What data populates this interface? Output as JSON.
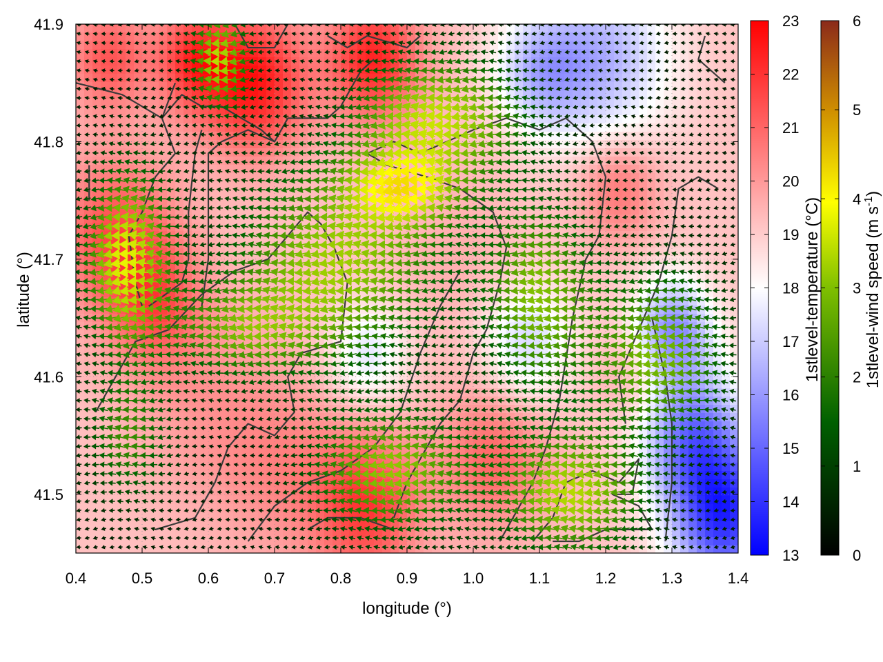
{
  "chart_data": {
    "type": "heatmap",
    "title": "",
    "xlabel": "longitude (°)",
    "ylabel": "latitude (°)",
    "xlim": [
      0.4,
      1.4
    ],
    "ylim": [
      41.45,
      41.9
    ],
    "x_ticks": [
      0.4,
      0.5,
      0.6,
      0.7,
      0.8,
      0.9,
      1.0,
      1.1,
      1.2,
      1.3,
      1.4
    ],
    "x_tick_labels": [
      "0.4",
      "0.5",
      "0.6",
      "0.7",
      "0.8",
      "0.9",
      "1.0",
      "1.1",
      "1.2",
      "1.3",
      "1.4"
    ],
    "y_ticks": [
      41.5,
      41.6,
      41.7,
      41.8,
      41.9
    ],
    "y_tick_labels": [
      "41.5",
      "41.6",
      "41.7",
      "41.8",
      "41.9"
    ],
    "grid": true,
    "temperature_colorbar": {
      "label": "1stlevel-temperature (°C)",
      "range": [
        13,
        23
      ],
      "ticks": [
        13,
        14,
        15,
        16,
        17,
        18,
        19,
        20,
        21,
        22,
        23
      ],
      "tick_labels": [
        "13",
        "14",
        "15",
        "16",
        "17",
        "18",
        "19",
        "20",
        "21",
        "22",
        "23"
      ],
      "colors": [
        "#0000ff",
        "#ffffff",
        "#ff0000"
      ]
    },
    "wind_colorbar": {
      "label_main": "1stlevel-wind speed (m s",
      "label_sup": "-1",
      "label_end": ")",
      "range": [
        0,
        6
      ],
      "ticks": [
        0,
        1,
        2,
        3,
        4,
        5,
        6
      ],
      "tick_labels": [
        "0",
        "1",
        "2",
        "3",
        "4",
        "5",
        "6"
      ],
      "colors": [
        "#000000",
        "#006400",
        "#7fbf00",
        "#ffff00",
        "#e0a000",
        "#8b2a1a"
      ]
    },
    "temperature_hotspots": [
      {
        "lon": 0.46,
        "lat": 41.72,
        "t": 21.5,
        "r": 0.09
      },
      {
        "lon": 0.52,
        "lat": 41.66,
        "t": 21.0,
        "r": 0.07
      },
      {
        "lon": 0.67,
        "lat": 41.85,
        "t": 22.5,
        "r": 0.08
      },
      {
        "lon": 0.58,
        "lat": 41.87,
        "t": 21.8,
        "r": 0.06
      },
      {
        "lon": 0.85,
        "lat": 41.87,
        "t": 22.3,
        "r": 0.07
      },
      {
        "lon": 0.45,
        "lat": 41.87,
        "t": 21.3,
        "r": 0.06
      },
      {
        "lon": 0.84,
        "lat": 41.49,
        "t": 21.8,
        "r": 0.08
      },
      {
        "lon": 1.03,
        "lat": 41.53,
        "t": 21.0,
        "r": 0.08
      },
      {
        "lon": 0.72,
        "lat": 41.52,
        "t": 20.2,
        "r": 0.1
      },
      {
        "lon": 1.22,
        "lat": 41.76,
        "t": 20.8,
        "r": 0.06
      },
      {
        "lon": 1.25,
        "lat": 41.6,
        "t": 20.0,
        "r": 0.06
      },
      {
        "lon": 0.6,
        "lat": 41.58,
        "t": 20.0,
        "r": 0.12
      },
      {
        "lon": 0.98,
        "lat": 41.7,
        "t": 19.6,
        "r": 0.1
      }
    ],
    "temperature_coldspots": [
      {
        "lon": 1.38,
        "lat": 41.48,
        "t": 14.2,
        "r": 0.08
      },
      {
        "lon": 1.33,
        "lat": 41.55,
        "t": 15.5,
        "r": 0.08
      },
      {
        "lon": 1.3,
        "lat": 41.64,
        "t": 15.8,
        "r": 0.06
      },
      {
        "lon": 1.2,
        "lat": 41.87,
        "t": 16.6,
        "r": 0.1
      },
      {
        "lon": 1.1,
        "lat": 41.86,
        "t": 16.9,
        "r": 0.07
      },
      {
        "lon": 1.08,
        "lat": 41.63,
        "t": 17.2,
        "r": 0.07
      },
      {
        "lon": 0.84,
        "lat": 41.62,
        "t": 17.5,
        "r": 0.06
      }
    ],
    "background_temperature": 19.2,
    "wind_vectors": {
      "lon_start": 0.405,
      "lon_step": 0.0125,
      "lat_start": 41.455,
      "lat_step": 0.0078,
      "direction": "mostly from the east (arrows pointing west)",
      "speed_range": [
        0,
        4.3
      ]
    },
    "coastlines": [
      [
        [
          0.4,
          41.85
        ],
        [
          0.47,
          41.84
        ],
        [
          0.53,
          41.82
        ],
        [
          0.56,
          41.84
        ],
        [
          0.59,
          41.83
        ],
        [
          0.62,
          41.83
        ],
        [
          0.68,
          41.81
        ],
        [
          0.7,
          41.8
        ],
        [
          0.72,
          41.82
        ],
        [
          0.78,
          41.82
        ],
        [
          0.8,
          41.83
        ],
        [
          0.83,
          41.86
        ],
        [
          0.85,
          41.87
        ]
      ],
      [
        [
          0.55,
          41.85
        ],
        [
          0.53,
          41.82
        ],
        [
          0.55,
          41.79
        ],
        [
          0.52,
          41.77
        ],
        [
          0.5,
          41.74
        ],
        [
          0.48,
          41.72
        ],
        [
          0.49,
          41.68
        ],
        [
          0.5,
          41.66
        ]
      ],
      [
        [
          0.59,
          41.81
        ],
        [
          0.58,
          41.79
        ],
        [
          0.57,
          41.74
        ],
        [
          0.57,
          41.7
        ],
        [
          0.56,
          41.68
        ],
        [
          0.51,
          41.66
        ]
      ],
      [
        [
          0.43,
          41.57
        ],
        [
          0.46,
          41.6
        ],
        [
          0.49,
          41.63
        ],
        [
          0.54,
          41.64
        ],
        [
          0.59,
          41.67
        ],
        [
          0.64,
          41.69
        ],
        [
          0.69,
          41.7
        ],
        [
          0.72,
          41.72
        ],
        [
          0.75,
          41.74
        ],
        [
          0.77,
          41.73
        ],
        [
          0.79,
          41.71
        ],
        [
          0.81,
          41.68
        ],
        [
          0.8,
          41.63
        ],
        [
          0.74,
          41.62
        ],
        [
          0.72,
          41.6
        ],
        [
          0.73,
          41.57
        ],
        [
          0.7,
          41.55
        ],
        [
          0.66,
          41.56
        ],
        [
          0.63,
          41.54
        ],
        [
          0.61,
          41.51
        ],
        [
          0.58,
          41.48
        ],
        [
          0.52,
          41.47
        ]
      ],
      [
        [
          0.7,
          41.8
        ],
        [
          0.66,
          41.81
        ],
        [
          0.62,
          41.8
        ],
        [
          0.6,
          41.79
        ],
        [
          0.6,
          41.7
        ],
        [
          0.59,
          41.66
        ]
      ],
      [
        [
          0.88,
          41.48
        ],
        [
          0.9,
          41.51
        ],
        [
          0.92,
          41.53
        ],
        [
          0.95,
          41.56
        ],
        [
          0.98,
          41.58
        ],
        [
          1.0,
          41.62
        ],
        [
          1.02,
          41.64
        ],
        [
          1.04,
          41.68
        ],
        [
          1.05,
          41.71
        ],
        [
          1.03,
          41.74
        ],
        [
          0.98,
          41.76
        ],
        [
          0.93,
          41.77
        ],
        [
          0.87,
          41.78
        ],
        [
          0.84,
          41.79
        ],
        [
          0.88,
          41.8
        ],
        [
          0.92,
          41.79
        ],
        [
          0.96,
          41.8
        ],
        [
          1.0,
          41.81
        ],
        [
          1.05,
          41.82
        ],
        [
          1.1,
          41.81
        ],
        [
          1.14,
          41.82
        ],
        [
          1.18,
          41.8
        ],
        [
          1.2,
          41.77
        ],
        [
          1.19,
          41.72
        ],
        [
          1.17,
          41.7
        ],
        [
          1.15,
          41.65
        ],
        [
          1.13,
          41.58
        ],
        [
          1.11,
          41.54
        ],
        [
          1.09,
          41.51
        ],
        [
          1.06,
          41.48
        ],
        [
          1.04,
          41.46
        ]
      ],
      [
        [
          0.66,
          41.46
        ],
        [
          0.7,
          41.49
        ],
        [
          0.75,
          41.51
        ],
        [
          0.8,
          41.52
        ],
        [
          0.85,
          41.54
        ],
        [
          0.89,
          41.57
        ],
        [
          0.92,
          41.62
        ],
        [
          0.95,
          41.66
        ],
        [
          0.98,
          41.69
        ]
      ],
      [
        [
          0.75,
          41.47
        ],
        [
          0.78,
          41.48
        ],
        [
          0.83,
          41.48
        ],
        [
          0.88,
          41.47
        ]
      ],
      [
        [
          1.09,
          41.46
        ],
        [
          1.12,
          41.48
        ],
        [
          1.14,
          41.51
        ],
        [
          1.18,
          41.52
        ],
        [
          1.22,
          41.51
        ],
        [
          1.25,
          41.53
        ],
        [
          1.24,
          41.5
        ],
        [
          1.21,
          41.5
        ],
        [
          1.25,
          41.49
        ],
        [
          1.27,
          41.47
        ],
        [
          1.24,
          41.47
        ],
        [
          1.2,
          41.47
        ],
        [
          1.16,
          41.46
        ],
        [
          1.12,
          41.46
        ]
      ],
      [
        [
          1.23,
          41.56
        ],
        [
          1.22,
          41.6
        ],
        [
          1.25,
          41.64
        ],
        [
          1.28,
          41.68
        ],
        [
          1.3,
          41.72
        ],
        [
          1.31,
          41.76
        ],
        [
          1.34,
          41.77
        ],
        [
          1.37,
          41.76
        ]
      ],
      [
        [
          1.29,
          41.46
        ],
        [
          1.3,
          41.51
        ],
        [
          1.3,
          41.56
        ],
        [
          1.29,
          41.6
        ],
        [
          1.27,
          41.65
        ]
      ],
      [
        [
          0.78,
          41.89
        ],
        [
          0.81,
          41.88
        ],
        [
          0.84,
          41.89
        ],
        [
          0.9,
          41.88
        ],
        [
          0.92,
          41.89
        ]
      ],
      [
        [
          0.64,
          41.9
        ],
        [
          0.66,
          41.88
        ],
        [
          0.7,
          41.88
        ],
        [
          0.72,
          41.9
        ]
      ],
      [
        [
          1.35,
          41.89
        ],
        [
          1.34,
          41.87
        ],
        [
          1.38,
          41.85
        ]
      ],
      [
        [
          0.42,
          41.75
        ],
        [
          0.42,
          41.78
        ]
      ]
    ]
  }
}
